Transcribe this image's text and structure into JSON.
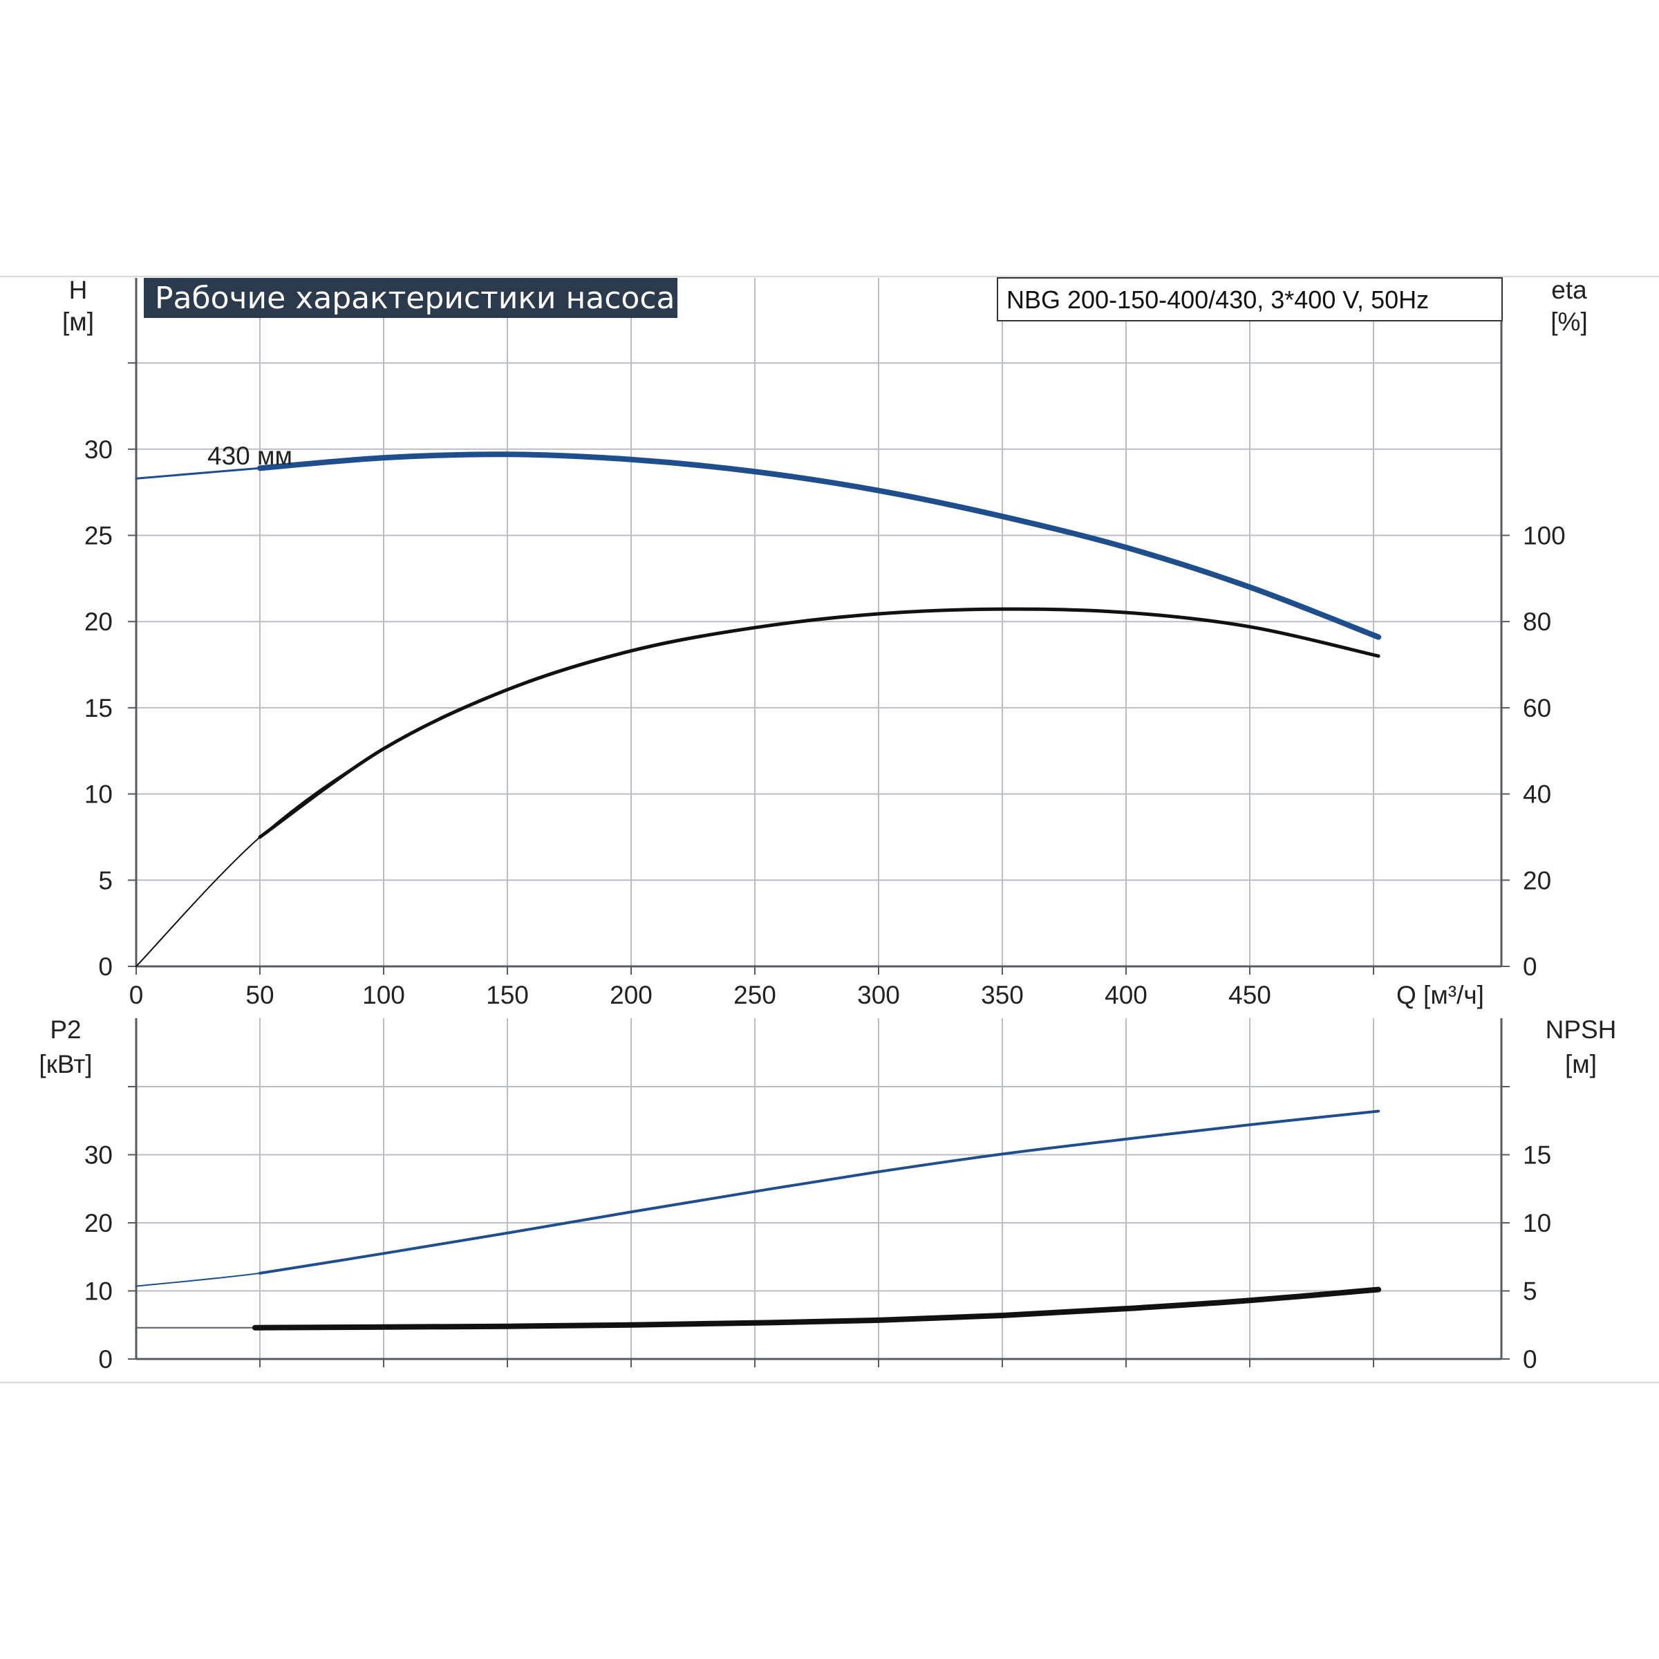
{
  "title": "Рабочие характеристики насоса",
  "model": "NBG 200-150-400/430, 3*400 V, 50Hz",
  "x_axis": {
    "label": "Q [м³/ч]",
    "ticks": [
      0,
      50,
      100,
      150,
      200,
      250,
      300,
      350,
      400,
      450
    ]
  },
  "top_plot": {
    "left_axis": {
      "name": "H",
      "unit": "[м]",
      "ticks": [
        0,
        5,
        10,
        15,
        20,
        25,
        30
      ]
    },
    "right_axis": {
      "name": "eta",
      "unit": "[%]",
      "ticks": [
        0,
        20,
        40,
        60,
        80,
        100
      ]
    },
    "curve_label": "430 мм"
  },
  "bottom_plot": {
    "left_axis": {
      "name": "P2",
      "unit": "[кВт]",
      "ticks": [
        0,
        10,
        20,
        30
      ]
    },
    "right_axis": {
      "name": "NPSH",
      "unit": "[м]",
      "ticks": [
        0,
        5,
        10,
        15
      ]
    }
  },
  "colors": {
    "head": "#1f4e8c",
    "efficiency": "#111111",
    "power": "#1f4e8c",
    "npsh": "#111111",
    "title_bg": "#2b3a4d"
  },
  "chart_data": [
    {
      "type": "line",
      "title": "Рабочие характеристики насоса",
      "xlabel": "Q [м³/ч]",
      "ylabel": "H [м]",
      "y2label": "eta [%]",
      "xlim": [
        0,
        500
      ],
      "ylim": [
        0,
        30
      ],
      "y2lim": [
        0,
        120
      ],
      "series": [
        {
          "name": "430 мм",
          "axis": "left",
          "x": [
            0,
            50,
            100,
            150,
            200,
            250,
            300,
            350,
            400,
            450,
            502
          ],
          "y": [
            28.3,
            28.9,
            29.5,
            29.7,
            29.4,
            28.7,
            27.6,
            26.1,
            24.3,
            22.0,
            19.1
          ]
        },
        {
          "axis": "right",
          "x": [
            0,
            50,
            100,
            150,
            200,
            250,
            300,
            350,
            400,
            450,
            502
          ],
          "y": [
            0,
            30,
            50.5,
            64.2,
            73.2,
            78.6,
            81.8,
            82.9,
            82.1,
            78.8,
            72.0
          ]
        }
      ]
    },
    {
      "type": "line",
      "xlabel": "Q [м³/ч]",
      "ylabel": "P2 [кВт]",
      "y2label": "NPSH [м]",
      "xlim": [
        0,
        500
      ],
      "ylim": [
        0,
        40
      ],
      "y2lim": [
        0,
        20
      ],
      "series": [
        {
          "axis": "left",
          "x": [
            0,
            50,
            100,
            150,
            200,
            250,
            300,
            350,
            400,
            450,
            502
          ],
          "y": [
            10.7,
            12.6,
            15.5,
            18.5,
            21.6,
            24.6,
            27.5,
            30.1,
            32.3,
            34.4,
            36.4
          ]
        },
        {
          "axis": "right",
          "x": [
            0,
            48,
            100,
            150,
            200,
            250,
            300,
            350,
            400,
            450,
            502
          ],
          "y": [
            2.3,
            2.3,
            2.35,
            2.4,
            2.5,
            2.65,
            2.85,
            3.2,
            3.7,
            4.3,
            5.1
          ]
        }
      ]
    }
  ]
}
